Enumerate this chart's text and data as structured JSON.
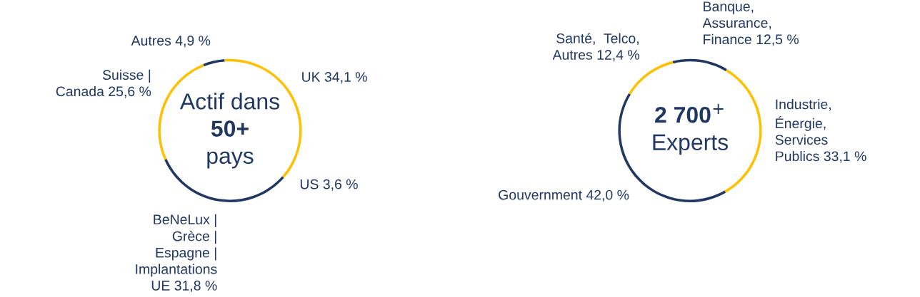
{
  "chart_data": [
    {
      "type": "donut",
      "categories": [
        "Autres",
        "UK",
        "US",
        "BeNeLux |\nGrèce |\nEspagne |\nImplantations\nUE",
        "Suisse |\nCanada"
      ],
      "values": [
        4.9,
        34.1,
        3.6,
        31.8,
        25.6
      ],
      "value_labels": [
        "4,9 %",
        "34,1 %",
        "3,6 %",
        "31,8 %",
        "25,6 %"
      ],
      "colors": [
        "#203864",
        "#ffc000",
        "#ffc000",
        "#203864",
        "#ffc000"
      ],
      "annotations": [
        "Actif dans",
        "50+",
        "pays"
      ]
    },
    {
      "type": "donut",
      "categories": [
        "Banque,\nAssurance,\nFinance",
        "Industrie,\nÉnergie,\nServices\nPublics",
        "Gouvernment",
        "Santé,  Telco,\nAutres"
      ],
      "values": [
        12.5,
        33.1,
        42.0,
        12.4
      ],
      "value_labels": [
        "12,5 %",
        "33,1 %",
        "42,0 %",
        "12,4 %"
      ],
      "colors": [
        "#203864",
        "#ffc000",
        "#203864",
        "#ffc000"
      ],
      "annotations": [
        "2 700$^{+}$",
        "Experts"
      ]
    }
  ]
}
